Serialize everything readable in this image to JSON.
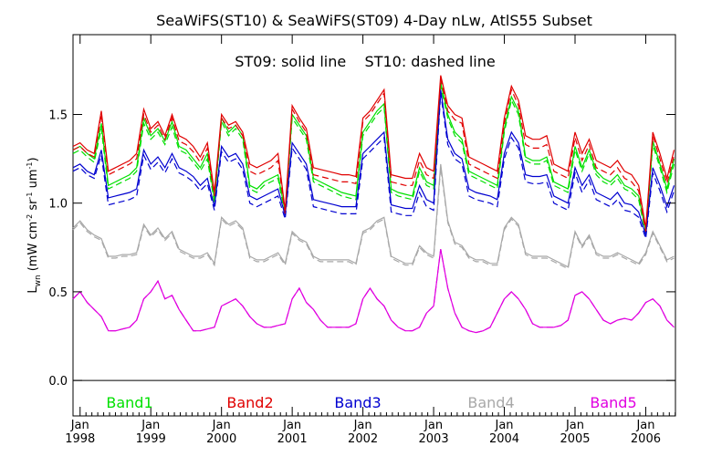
{
  "chart_data": {
    "type": "line",
    "title": "SeaWiFS(ST10) & SeaWiFS(ST09) 4-Day nLw, AtlS55 Subset",
    "annotation": "ST09: solid line    ST10: dashed line",
    "ylabel_main": "L",
    "ylabel_sub": "wn",
    "ylabel_units": "(mW cm",
    "ylabel_units_full": [
      "(mW cm",
      "-2",
      " sr",
      "-1",
      " um",
      "-1",
      ")"
    ],
    "ylim": [
      -0.2,
      1.95
    ],
    "yticks": [
      0.0,
      0.5,
      1.0,
      1.5
    ],
    "ytick_labels": [
      "0.0",
      "0.5",
      "1.0",
      "1.5"
    ],
    "xlim": [
      1997.9,
      2006.42
    ],
    "xticks": [
      {
        "month": "Jan",
        "year": "1998",
        "x": 1998.0
      },
      {
        "month": "Jan",
        "year": "1999",
        "x": 1999.0
      },
      {
        "month": "Jan",
        "year": "2000",
        "x": 2000.0
      },
      {
        "month": "Jan",
        "year": "2001",
        "x": 2001.0
      },
      {
        "month": "Jan",
        "year": "2002",
        "x": 2002.0
      },
      {
        "month": "Jan",
        "year": "2003",
        "x": 2003.0
      },
      {
        "month": "Jan",
        "year": "2004",
        "x": 2004.0
      },
      {
        "month": "Jan",
        "year": "2005",
        "x": 2005.0
      },
      {
        "month": "Jan",
        "year": "2006",
        "x": 2006.0
      }
    ],
    "zero_line": 0.0,
    "legend": [
      {
        "label": "Band1",
        "color": "#00e000"
      },
      {
        "label": "Band2",
        "color": "#e00000"
      },
      {
        "label": "Band3",
        "color": "#0000d0"
      },
      {
        "label": "Band4",
        "color": "#a8a8a8"
      },
      {
        "label": "Band5",
        "color": "#e000e0"
      }
    ],
    "x": [
      1997.9,
      1998.0,
      1998.1,
      1998.2,
      1998.3,
      1998.4,
      1998.5,
      1998.6,
      1998.7,
      1998.8,
      1998.9,
      1999.0,
      1999.1,
      1999.2,
      1999.3,
      1999.4,
      1999.5,
      1999.6,
      1999.7,
      1999.8,
      1999.9,
      2000.0,
      2000.1,
      2000.2,
      2000.3,
      2000.4,
      2000.5,
      2000.6,
      2000.7,
      2000.8,
      2000.9,
      2001.0,
      2001.1,
      2001.2,
      2001.3,
      2001.4,
      2001.5,
      2001.6,
      2001.7,
      2001.8,
      2001.9,
      2002.0,
      2002.1,
      2002.2,
      2002.3,
      2002.4,
      2002.5,
      2002.6,
      2002.7,
      2002.8,
      2002.9,
      2003.0,
      2003.1,
      2003.2,
      2003.3,
      2003.4,
      2003.5,
      2003.6,
      2003.7,
      2003.8,
      2003.9,
      2004.0,
      2004.1,
      2004.2,
      2004.3,
      2004.4,
      2004.5,
      2004.6,
      2004.7,
      2004.8,
      2004.9,
      2005.0,
      2005.1,
      2005.2,
      2005.3,
      2005.4,
      2005.5,
      2005.6,
      2005.7,
      2005.8,
      2005.9,
      2006.0,
      2006.1,
      2006.2,
      2006.3,
      2006.4
    ],
    "series": [
      {
        "band": "Band1",
        "line": "ST09",
        "values": [
          1.3,
          1.32,
          1.28,
          1.25,
          1.45,
          1.1,
          1.12,
          1.14,
          1.16,
          1.2,
          1.48,
          1.38,
          1.42,
          1.35,
          1.46,
          1.32,
          1.3,
          1.25,
          1.2,
          1.28,
          1.02,
          1.48,
          1.4,
          1.44,
          1.38,
          1.1,
          1.08,
          1.12,
          1.14,
          1.16,
          0.95,
          1.5,
          1.44,
          1.38,
          1.14,
          1.12,
          1.1,
          1.08,
          1.06,
          1.05,
          1.04,
          1.4,
          1.46,
          1.52,
          1.56,
          1.08,
          1.06,
          1.05,
          1.04,
          1.2,
          1.12,
          1.1,
          1.68,
          1.5,
          1.4,
          1.36,
          1.18,
          1.16,
          1.14,
          1.12,
          1.1,
          1.42,
          1.6,
          1.52,
          1.26,
          1.24,
          1.24,
          1.26,
          1.12,
          1.1,
          1.08,
          1.32,
          1.2,
          1.3,
          1.18,
          1.14,
          1.12,
          1.16,
          1.1,
          1.08,
          1.04,
          0.84,
          1.35,
          1.22,
          1.08,
          1.25
        ]
      },
      {
        "band": "Band1",
        "line": "ST10",
        "values": [
          1.28,
          1.3,
          1.26,
          1.23,
          1.42,
          1.08,
          1.1,
          1.12,
          1.14,
          1.18,
          1.45,
          1.36,
          1.4,
          1.33,
          1.43,
          1.3,
          1.28,
          1.23,
          1.18,
          1.25,
          1.0,
          1.46,
          1.38,
          1.42,
          1.36,
          1.08,
          1.06,
          1.1,
          1.12,
          1.14,
          0.93,
          1.48,
          1.42,
          1.36,
          1.12,
          1.1,
          1.08,
          1.06,
          1.04,
          1.03,
          1.02,
          1.38,
          1.44,
          1.5,
          1.54,
          1.06,
          1.04,
          1.03,
          1.02,
          1.18,
          1.1,
          1.08,
          1.66,
          1.48,
          1.38,
          1.34,
          1.16,
          1.14,
          1.12,
          1.1,
          1.08,
          1.4,
          1.58,
          1.5,
          1.24,
          1.22,
          1.22,
          1.24,
          1.1,
          1.08,
          1.06,
          1.3,
          1.18,
          1.28,
          1.16,
          1.12,
          1.1,
          1.14,
          1.08,
          1.06,
          1.02,
          0.82,
          1.33,
          1.2,
          1.06,
          1.22
        ]
      },
      {
        "band": "Band2",
        "line": "ST09",
        "values": [
          1.32,
          1.34,
          1.3,
          1.28,
          1.52,
          1.18,
          1.2,
          1.22,
          1.24,
          1.28,
          1.53,
          1.42,
          1.46,
          1.38,
          1.5,
          1.38,
          1.36,
          1.32,
          1.26,
          1.34,
          1.06,
          1.5,
          1.44,
          1.46,
          1.4,
          1.22,
          1.2,
          1.22,
          1.24,
          1.28,
          0.96,
          1.55,
          1.48,
          1.42,
          1.2,
          1.19,
          1.18,
          1.17,
          1.16,
          1.16,
          1.15,
          1.48,
          1.52,
          1.58,
          1.64,
          1.16,
          1.15,
          1.14,
          1.14,
          1.28,
          1.2,
          1.18,
          1.72,
          1.55,
          1.5,
          1.48,
          1.26,
          1.24,
          1.22,
          1.2,
          1.18,
          1.48,
          1.66,
          1.58,
          1.38,
          1.36,
          1.36,
          1.38,
          1.22,
          1.2,
          1.18,
          1.4,
          1.28,
          1.36,
          1.24,
          1.22,
          1.2,
          1.24,
          1.18,
          1.16,
          1.1,
          0.86,
          1.4,
          1.28,
          1.14,
          1.3
        ]
      },
      {
        "band": "Band2",
        "line": "ST10",
        "values": [
          1.3,
          1.32,
          1.28,
          1.26,
          1.5,
          1.16,
          1.18,
          1.2,
          1.22,
          1.25,
          1.5,
          1.4,
          1.44,
          1.36,
          1.48,
          1.35,
          1.33,
          1.29,
          1.23,
          1.31,
          1.04,
          1.48,
          1.42,
          1.44,
          1.38,
          1.18,
          1.16,
          1.18,
          1.2,
          1.24,
          0.94,
          1.53,
          1.46,
          1.4,
          1.16,
          1.15,
          1.14,
          1.13,
          1.12,
          1.12,
          1.11,
          1.46,
          1.5,
          1.56,
          1.62,
          1.12,
          1.11,
          1.1,
          1.1,
          1.24,
          1.16,
          1.14,
          1.7,
          1.52,
          1.47,
          1.45,
          1.22,
          1.2,
          1.18,
          1.16,
          1.14,
          1.45,
          1.64,
          1.55,
          1.33,
          1.31,
          1.31,
          1.33,
          1.18,
          1.16,
          1.14,
          1.37,
          1.24,
          1.33,
          1.2,
          1.18,
          1.16,
          1.2,
          1.14,
          1.12,
          1.07,
          0.84,
          1.38,
          1.25,
          1.11,
          1.27
        ]
      },
      {
        "band": "Band3",
        "line": "ST09",
        "values": [
          1.2,
          1.22,
          1.18,
          1.16,
          1.3,
          1.03,
          1.04,
          1.05,
          1.06,
          1.08,
          1.3,
          1.22,
          1.26,
          1.2,
          1.28,
          1.2,
          1.18,
          1.15,
          1.1,
          1.14,
          0.98,
          1.32,
          1.26,
          1.28,
          1.22,
          1.04,
          1.02,
          1.04,
          1.06,
          1.08,
          0.93,
          1.34,
          1.28,
          1.22,
          1.02,
          1.01,
          1.0,
          0.99,
          0.98,
          0.98,
          0.98,
          1.28,
          1.32,
          1.36,
          1.4,
          0.99,
          0.98,
          0.97,
          0.97,
          1.1,
          1.02,
          1.0,
          1.64,
          1.36,
          1.28,
          1.25,
          1.08,
          1.06,
          1.05,
          1.04,
          1.02,
          1.28,
          1.4,
          1.34,
          1.16,
          1.15,
          1.15,
          1.16,
          1.04,
          1.02,
          1.0,
          1.2,
          1.1,
          1.16,
          1.06,
          1.04,
          1.02,
          1.06,
          1.0,
          0.99,
          0.95,
          0.82,
          1.2,
          1.1,
          0.98,
          1.1
        ]
      },
      {
        "band": "Band3",
        "line": "ST10",
        "values": [
          1.18,
          1.2,
          1.16,
          1.14,
          1.27,
          0.99,
          1.0,
          1.01,
          1.02,
          1.04,
          1.27,
          1.19,
          1.23,
          1.17,
          1.25,
          1.17,
          1.15,
          1.12,
          1.07,
          1.11,
          0.96,
          1.29,
          1.23,
          1.25,
          1.19,
          1.0,
          0.98,
          1.0,
          1.02,
          1.04,
          0.91,
          1.31,
          1.25,
          1.19,
          0.98,
          0.97,
          0.96,
          0.95,
          0.94,
          0.94,
          0.94,
          1.25,
          1.29,
          1.33,
          1.37,
          0.95,
          0.94,
          0.93,
          0.93,
          1.06,
          0.98,
          0.96,
          1.62,
          1.33,
          1.25,
          1.22,
          1.04,
          1.02,
          1.01,
          1.0,
          0.98,
          1.25,
          1.37,
          1.31,
          1.12,
          1.11,
          1.11,
          1.12,
          1.0,
          0.98,
          0.96,
          1.17,
          1.06,
          1.13,
          1.02,
          1.0,
          0.98,
          1.02,
          0.96,
          0.95,
          0.92,
          0.8,
          1.17,
          1.07,
          0.95,
          1.07
        ]
      },
      {
        "band": "Band4",
        "line": "ST09",
        "values": [
          0.86,
          0.9,
          0.85,
          0.82,
          0.8,
          0.7,
          0.7,
          0.71,
          0.71,
          0.72,
          0.88,
          0.82,
          0.86,
          0.8,
          0.84,
          0.74,
          0.72,
          0.7,
          0.7,
          0.72,
          0.66,
          0.92,
          0.88,
          0.9,
          0.86,
          0.7,
          0.68,
          0.68,
          0.7,
          0.72,
          0.66,
          0.84,
          0.8,
          0.78,
          0.7,
          0.68,
          0.68,
          0.68,
          0.68,
          0.68,
          0.66,
          0.84,
          0.86,
          0.9,
          0.92,
          0.7,
          0.68,
          0.66,
          0.66,
          0.76,
          0.72,
          0.7,
          1.22,
          0.9,
          0.78,
          0.76,
          0.7,
          0.68,
          0.68,
          0.66,
          0.66,
          0.86,
          0.92,
          0.88,
          0.72,
          0.7,
          0.7,
          0.7,
          0.68,
          0.66,
          0.64,
          0.84,
          0.76,
          0.82,
          0.72,
          0.7,
          0.7,
          0.72,
          0.7,
          0.68,
          0.66,
          0.72,
          0.84,
          0.76,
          0.68,
          0.7
        ]
      },
      {
        "band": "Band4",
        "line": "ST10",
        "values": [
          0.85,
          0.89,
          0.84,
          0.81,
          0.79,
          0.69,
          0.69,
          0.7,
          0.7,
          0.71,
          0.87,
          0.81,
          0.85,
          0.79,
          0.83,
          0.73,
          0.71,
          0.69,
          0.69,
          0.71,
          0.65,
          0.91,
          0.87,
          0.89,
          0.85,
          0.69,
          0.67,
          0.67,
          0.69,
          0.71,
          0.65,
          0.83,
          0.79,
          0.77,
          0.69,
          0.67,
          0.67,
          0.67,
          0.67,
          0.67,
          0.65,
          0.83,
          0.85,
          0.89,
          0.91,
          0.69,
          0.67,
          0.65,
          0.65,
          0.75,
          0.71,
          0.69,
          1.2,
          0.89,
          0.77,
          0.75,
          0.69,
          0.67,
          0.67,
          0.65,
          0.65,
          0.85,
          0.91,
          0.87,
          0.71,
          0.69,
          0.69,
          0.69,
          0.67,
          0.65,
          0.63,
          0.83,
          0.75,
          0.81,
          0.71,
          0.69,
          0.69,
          0.71,
          0.69,
          0.67,
          0.65,
          0.71,
          0.83,
          0.75,
          0.67,
          0.69
        ]
      },
      {
        "band": "Band5",
        "line": "ST09",
        "values": [
          0.46,
          0.5,
          0.44,
          0.4,
          0.36,
          0.28,
          0.28,
          0.29,
          0.3,
          0.34,
          0.46,
          0.5,
          0.56,
          0.46,
          0.48,
          0.4,
          0.34,
          0.28,
          0.28,
          0.29,
          0.3,
          0.42,
          0.44,
          0.46,
          0.42,
          0.36,
          0.32,
          0.3,
          0.3,
          0.31,
          0.32,
          0.46,
          0.52,
          0.44,
          0.4,
          0.34,
          0.3,
          0.3,
          0.3,
          0.3,
          0.32,
          0.46,
          0.52,
          0.46,
          0.42,
          0.34,
          0.3,
          0.28,
          0.28,
          0.3,
          0.38,
          0.42,
          0.74,
          0.52,
          0.38,
          0.3,
          0.28,
          0.27,
          0.28,
          0.3,
          0.38,
          0.46,
          0.5,
          0.46,
          0.4,
          0.32,
          0.3,
          0.3,
          0.3,
          0.31,
          0.34,
          0.48,
          0.5,
          0.46,
          0.4,
          0.34,
          0.32,
          0.34,
          0.35,
          0.34,
          0.38,
          0.44,
          0.46,
          0.42,
          0.34,
          0.3
        ]
      },
      {
        "band": "Band5",
        "line": "ST10",
        "values": [
          0.46,
          0.5,
          0.44,
          0.4,
          0.36,
          0.28,
          0.28,
          0.29,
          0.3,
          0.34,
          0.46,
          0.5,
          0.56,
          0.46,
          0.48,
          0.4,
          0.34,
          0.28,
          0.28,
          0.29,
          0.3,
          0.42,
          0.44,
          0.46,
          0.42,
          0.36,
          0.32,
          0.3,
          0.3,
          0.31,
          0.32,
          0.46,
          0.52,
          0.44,
          0.4,
          0.34,
          0.3,
          0.3,
          0.3,
          0.3,
          0.32,
          0.46,
          0.52,
          0.46,
          0.42,
          0.34,
          0.3,
          0.28,
          0.28,
          0.3,
          0.38,
          0.42,
          0.74,
          0.52,
          0.38,
          0.3,
          0.28,
          0.27,
          0.28,
          0.3,
          0.38,
          0.46,
          0.5,
          0.46,
          0.4,
          0.32,
          0.3,
          0.3,
          0.3,
          0.31,
          0.34,
          0.48,
          0.5,
          0.46,
          0.4,
          0.34,
          0.32,
          0.34,
          0.35,
          0.34,
          0.38,
          0.44,
          0.46,
          0.42,
          0.34,
          0.3
        ]
      }
    ],
    "series_colors": {
      "Band1": "#00e000",
      "Band2": "#e00000",
      "Band3": "#0000d0",
      "Band4": "#a8a8a8",
      "Band5": "#e000e0"
    },
    "grid": false,
    "legend_placement": "bottom-inside"
  }
}
